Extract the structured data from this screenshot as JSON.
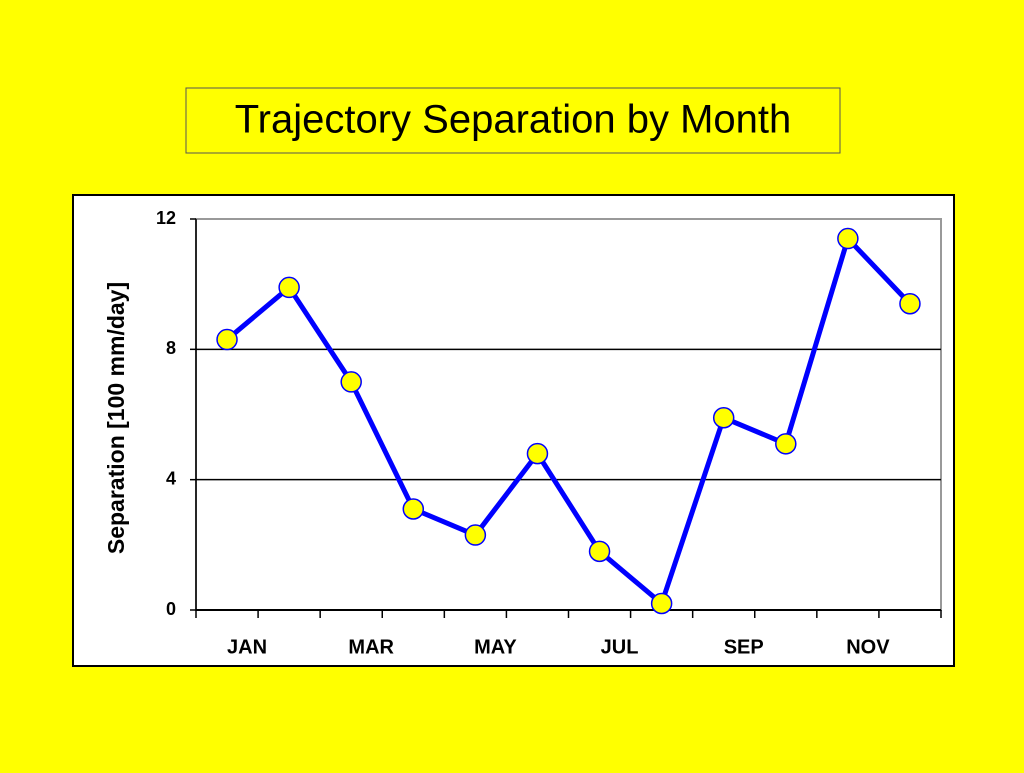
{
  "chart_data": {
    "type": "line",
    "title": "Trajectory Separation by Month",
    "y_label": "Separation [100 mm/day]",
    "categories": [
      "JAN",
      null,
      "MAR",
      null,
      "MAY",
      null,
      "JUL",
      null,
      "SEP",
      null,
      "NOV",
      null
    ],
    "series": [
      {
        "name": "Separation",
        "color": "#0000ff",
        "marker_color": "#ffff00",
        "values": [
          8.3,
          9.9,
          7.0,
          3.1,
          2.3,
          4.8,
          1.8,
          0.2,
          5.9,
          5.1,
          11.4,
          9.4
        ]
      }
    ],
    "ylim": [
      0,
      12
    ],
    "yticks": [
      0,
      4,
      8,
      12
    ],
    "grid": true
  }
}
